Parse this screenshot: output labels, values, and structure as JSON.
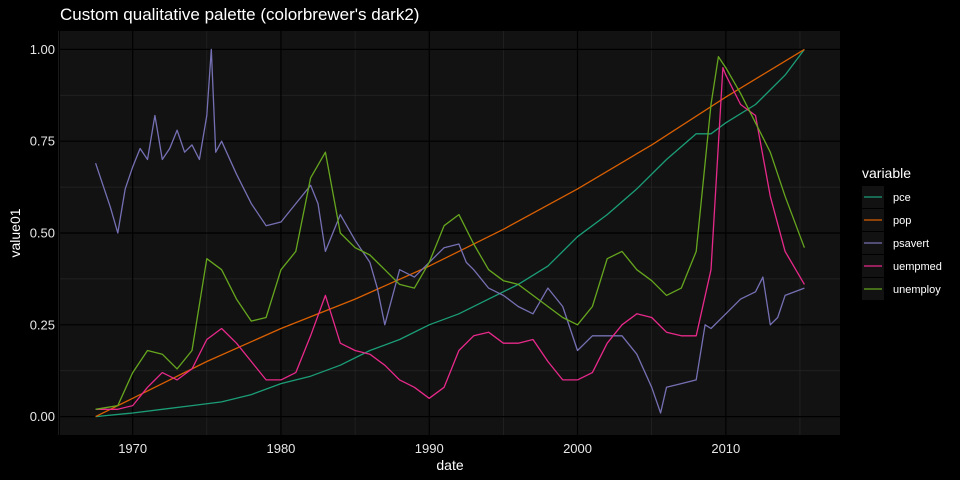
{
  "chart_data": {
    "type": "line",
    "title": "Custom qualitative palette (colorbrewer's dark2)",
    "xlabel": "date",
    "ylabel": "value01",
    "xlim": [
      1967.5,
      2015.3
    ],
    "ylim": [
      0,
      1
    ],
    "x_ticks": [
      "1970",
      "1980",
      "1990",
      "2000",
      "2010"
    ],
    "y_ticks": [
      "0.00",
      "0.25",
      "0.50",
      "0.75",
      "1.00"
    ],
    "grid": true,
    "legend": {
      "title": "variable",
      "placement": "right"
    },
    "series": [
      {
        "name": "pce",
        "color": "#1B9E77",
        "x": [
          1967.5,
          1970,
          1972,
          1974,
          1976,
          1978,
          1980,
          1982,
          1984,
          1986,
          1988,
          1990,
          1992,
          1994,
          1996,
          1998,
          2000,
          2002,
          2004,
          2006,
          2008,
          2009,
          2010,
          2012,
          2014,
          2015.3
        ],
        "y": [
          0.0,
          0.01,
          0.02,
          0.03,
          0.04,
          0.06,
          0.09,
          0.11,
          0.14,
          0.18,
          0.21,
          0.25,
          0.28,
          0.32,
          0.36,
          0.41,
          0.49,
          0.55,
          0.62,
          0.7,
          0.77,
          0.77,
          0.8,
          0.85,
          0.93,
          1.0
        ]
      },
      {
        "name": "pop",
        "color": "#D95F02",
        "x": [
          1967.5,
          1970,
          1975,
          1980,
          1985,
          1990,
          1995,
          2000,
          2005,
          2010,
          2015.3
        ],
        "y": [
          0.0,
          0.05,
          0.15,
          0.24,
          0.32,
          0.41,
          0.51,
          0.62,
          0.74,
          0.87,
          1.0
        ]
      },
      {
        "name": "psavert",
        "color": "#7570B3",
        "x": [
          1967.5,
          1968.5,
          1969,
          1969.5,
          1970,
          1970.5,
          1971,
          1971.5,
          1972,
          1972.5,
          1973,
          1973.5,
          1974,
          1974.5,
          1975,
          1975.3,
          1975.6,
          1976,
          1977,
          1978,
          1979,
          1980,
          1981,
          1982,
          1982.5,
          1983,
          1984,
          1985,
          1986,
          1986.5,
          1987,
          1988,
          1989,
          1990,
          1991,
          1992,
          1992.5,
          1993,
          1994,
          1995,
          1996,
          1997,
          1998,
          1999,
          2000,
          2001,
          2002,
          2003,
          2004,
          2005,
          2005.6,
          2006,
          2007,
          2008,
          2008.6,
          2009,
          2010,
          2011,
          2012,
          2012.5,
          2013,
          2013.5,
          2014,
          2015.3
        ],
        "y": [
          0.69,
          0.57,
          0.5,
          0.62,
          0.68,
          0.73,
          0.7,
          0.82,
          0.7,
          0.73,
          0.78,
          0.72,
          0.74,
          0.7,
          0.82,
          1.0,
          0.72,
          0.75,
          0.66,
          0.58,
          0.52,
          0.53,
          0.58,
          0.63,
          0.58,
          0.45,
          0.55,
          0.48,
          0.42,
          0.35,
          0.25,
          0.4,
          0.38,
          0.42,
          0.46,
          0.47,
          0.42,
          0.4,
          0.35,
          0.33,
          0.3,
          0.28,
          0.35,
          0.3,
          0.18,
          0.22,
          0.22,
          0.22,
          0.17,
          0.08,
          0.01,
          0.08,
          0.09,
          0.1,
          0.25,
          0.24,
          0.28,
          0.32,
          0.34,
          0.38,
          0.25,
          0.27,
          0.33,
          0.35
        ]
      },
      {
        "name": "uempmed",
        "color": "#E7298A",
        "x": [
          1967.5,
          1969,
          1970,
          1971,
          1972,
          1973,
          1974,
          1975,
          1976,
          1977,
          1978,
          1979,
          1980,
          1981,
          1982,
          1983,
          1984,
          1985,
          1986,
          1987,
          1988,
          1989,
          1990,
          1991,
          1992,
          1993,
          1994,
          1995,
          1996,
          1997,
          1998,
          1999,
          2000,
          2001,
          2002,
          2003,
          2004,
          2005,
          2006,
          2007,
          2008,
          2009,
          2009.8,
          2010,
          2011,
          2012,
          2013,
          2014,
          2015.3
        ],
        "y": [
          0.02,
          0.02,
          0.03,
          0.08,
          0.12,
          0.1,
          0.13,
          0.21,
          0.24,
          0.2,
          0.15,
          0.1,
          0.1,
          0.12,
          0.22,
          0.33,
          0.2,
          0.18,
          0.17,
          0.14,
          0.1,
          0.08,
          0.05,
          0.08,
          0.18,
          0.22,
          0.23,
          0.2,
          0.2,
          0.21,
          0.15,
          0.1,
          0.1,
          0.12,
          0.2,
          0.25,
          0.28,
          0.27,
          0.23,
          0.22,
          0.22,
          0.4,
          0.95,
          0.93,
          0.85,
          0.82,
          0.6,
          0.45,
          0.36
        ]
      },
      {
        "name": "unemploy",
        "color": "#66A61E",
        "x": [
          1967.5,
          1969,
          1970,
          1971,
          1972,
          1973,
          1974,
          1975,
          1976,
          1977,
          1978,
          1979,
          1980,
          1981,
          1982,
          1983,
          1984,
          1985,
          1986,
          1987,
          1988,
          1989,
          1990,
          1991,
          1992,
          1993,
          1994,
          1995,
          1996,
          1997,
          1998,
          1999,
          2000,
          2001,
          2002,
          2003,
          2004,
          2005,
          2006,
          2007,
          2008,
          2009,
          2009.5,
          2010,
          2011,
          2012,
          2013,
          2014,
          2015.3
        ],
        "y": [
          0.02,
          0.03,
          0.12,
          0.18,
          0.17,
          0.13,
          0.18,
          0.43,
          0.4,
          0.32,
          0.26,
          0.27,
          0.4,
          0.45,
          0.65,
          0.72,
          0.5,
          0.46,
          0.44,
          0.4,
          0.36,
          0.35,
          0.42,
          0.52,
          0.55,
          0.47,
          0.4,
          0.37,
          0.36,
          0.33,
          0.3,
          0.27,
          0.25,
          0.3,
          0.43,
          0.45,
          0.4,
          0.37,
          0.33,
          0.35,
          0.45,
          0.85,
          0.98,
          0.95,
          0.88,
          0.8,
          0.72,
          0.6,
          0.46
        ]
      }
    ]
  }
}
